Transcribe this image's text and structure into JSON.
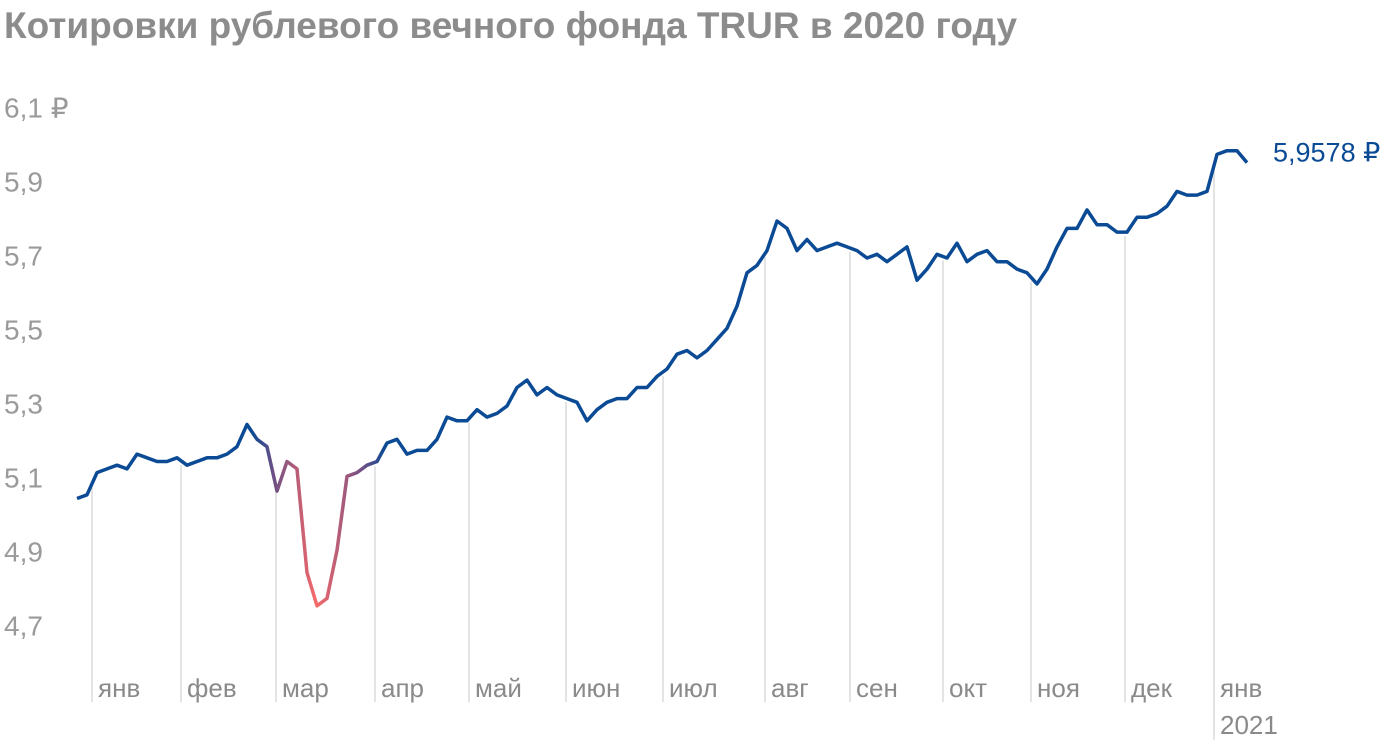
{
  "chart_data": {
    "type": "line",
    "title": "Котировки рублевого вечного фонда TRUR в 2020 году",
    "series": [
      {
        "color": "#0b4a94",
        "highlight_color": "#f76a6a",
        "values": [
          5.05,
          5.06,
          5.12,
          5.13,
          5.14,
          5.13,
          5.17,
          5.16,
          5.15,
          5.15,
          5.16,
          5.14,
          5.15,
          5.16,
          5.16,
          5.17,
          5.19,
          5.25,
          5.21,
          5.19,
          5.07,
          5.15,
          5.13,
          4.85,
          4.76,
          4.78,
          4.91,
          5.11,
          5.12,
          5.14,
          5.15,
          5.2,
          5.21,
          5.17,
          5.18,
          5.18,
          5.21,
          5.27,
          5.26,
          5.26,
          5.29,
          5.27,
          5.28,
          5.3,
          5.35,
          5.37,
          5.33,
          5.35,
          5.33,
          5.32,
          5.31,
          5.26,
          5.29,
          5.31,
          5.32,
          5.32,
          5.35,
          5.35,
          5.38,
          5.4,
          5.44,
          5.45,
          5.43,
          5.45,
          5.48,
          5.51,
          5.57,
          5.66,
          5.68,
          5.72,
          5.8,
          5.78,
          5.72,
          5.75,
          5.72,
          5.73,
          5.74,
          5.73,
          5.72,
          5.7,
          5.71,
          5.69,
          5.71,
          5.73,
          5.64,
          5.67,
          5.71,
          5.7,
          5.74,
          5.69,
          5.71,
          5.72,
          5.69,
          5.69,
          5.67,
          5.66,
          5.63,
          5.67,
          5.73,
          5.78,
          5.78,
          5.83,
          5.79,
          5.79,
          5.77,
          5.77,
          5.81,
          5.81,
          5.82,
          5.84,
          5.88,
          5.87,
          5.87,
          5.88,
          5.98,
          5.99,
          5.99,
          5.9578
        ],
        "last_value_label": "5,9578 ₽"
      }
    ],
    "xlim": [
      0,
      117
    ],
    "xticks": [
      {
        "value": 1.5,
        "label": "янв"
      },
      {
        "value": 10.4,
        "label": "фев"
      },
      {
        "value": 19.9,
        "label": "мар"
      },
      {
        "value": 29.8,
        "label": "апр"
      },
      {
        "value": 39.2,
        "label": "май"
      },
      {
        "value": 48.9,
        "label": "июн"
      },
      {
        "value": 58.6,
        "label": "июл"
      },
      {
        "value": 68.8,
        "label": "авг"
      },
      {
        "value": 77.3,
        "label": "сен"
      },
      {
        "value": 86.6,
        "label": "окт"
      },
      {
        "value": 95.4,
        "label": "ноя"
      },
      {
        "value": 104.8,
        "label": "дек"
      },
      {
        "value": 113.7,
        "label": "янв"
      }
    ],
    "year_label": "2021",
    "ylim": [
      4.7,
      6.1
    ],
    "yticks": [
      {
        "value": 6.1,
        "label": "6,1 ₽"
      },
      {
        "value": 5.9,
        "label": "5,9"
      },
      {
        "value": 5.7,
        "label": "5,7"
      },
      {
        "value": 5.5,
        "label": "5,5"
      },
      {
        "value": 5.3,
        "label": "5,3"
      },
      {
        "value": 5.1,
        "label": "5,1"
      },
      {
        "value": 4.9,
        "label": "4,9"
      },
      {
        "value": 4.7,
        "label": "4,7"
      }
    ]
  }
}
